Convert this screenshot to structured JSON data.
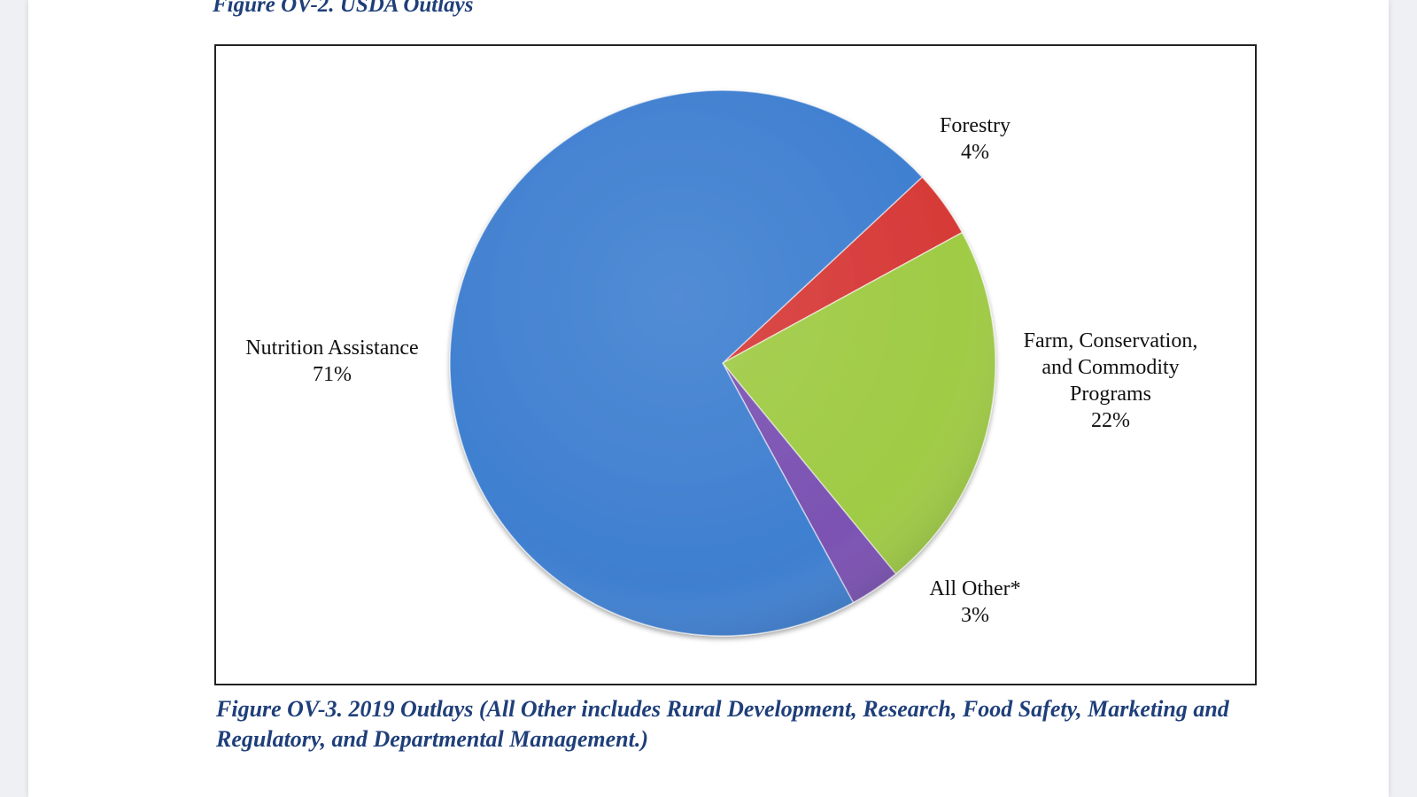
{
  "figure_title": "Figure OV-2. USDA Outlays",
  "caption": "Figure OV-3. 2019 Outlays (All Other includes Rural Development, Research, Food Safety, Marketing and Regulatory, and Departmental Management.)",
  "chart_data": {
    "type": "pie",
    "title": "",
    "legend": "none",
    "slices": [
      {
        "label_lines": [
          "Forestry"
        ],
        "value": 4,
        "value_label": "4%",
        "color": "#d63a38"
      },
      {
        "label_lines": [
          "Farm, Conservation,",
          "and Commodity",
          "Programs"
        ],
        "value": 22,
        "value_label": "22%",
        "color": "#9fcb45"
      },
      {
        "label_lines": [
          "All Other*"
        ],
        "value": 3,
        "value_label": "3%",
        "color": "#7b52b2"
      },
      {
        "label_lines": [
          "Nutrition Assistance"
        ],
        "value": 71,
        "value_label": "71%",
        "color": "#3f7fd0"
      }
    ]
  }
}
